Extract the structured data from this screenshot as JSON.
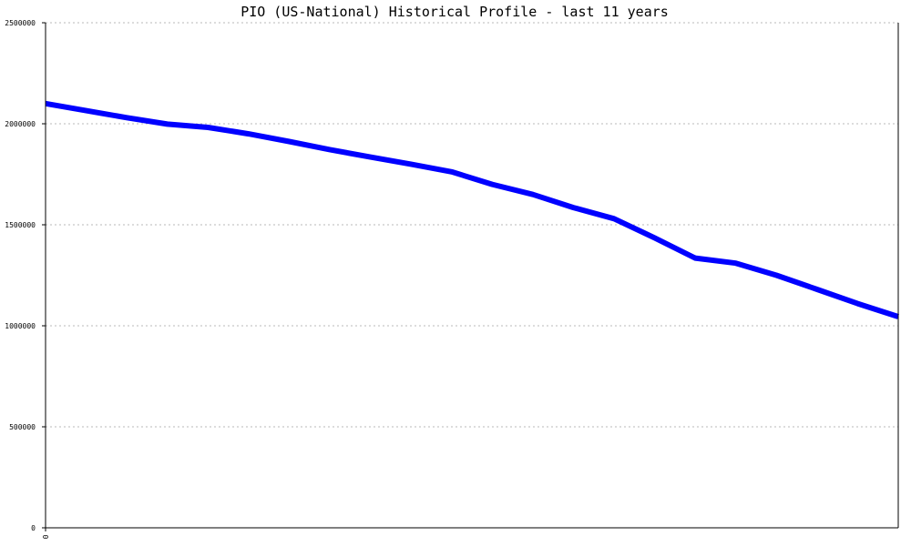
{
  "chart_data": {
    "type": "line",
    "title": "PIO (US-National) Historical Profile - last 11 years",
    "xlabel": "",
    "ylabel": "",
    "x_tick_labels": [
      "0"
    ],
    "ylim": [
      0,
      2500000
    ],
    "y_ticks": [
      0,
      500000,
      1000000,
      1500000,
      2000000,
      2500000
    ],
    "y_tick_labels": [
      "0",
      "500000",
      "1000000",
      "1500000",
      "2000000",
      "2500000"
    ],
    "grid": true,
    "x": [
      0,
      1,
      2,
      3,
      4,
      5,
      6,
      7,
      8,
      9,
      10,
      11,
      12,
      13,
      14,
      15,
      16,
      17,
      18,
      19,
      20,
      21
    ],
    "series": [
      {
        "color": "#0000ff",
        "values": [
          2100000,
          2065000,
          2030000,
          1998000,
          1982000,
          1950000,
          1912000,
          1872000,
          1835000,
          1800000,
          1762000,
          1700000,
          1650000,
          1585000,
          1530000,
          1435000,
          1335000,
          1310000,
          1250000,
          1180000,
          1110000,
          1045000
        ]
      }
    ]
  }
}
